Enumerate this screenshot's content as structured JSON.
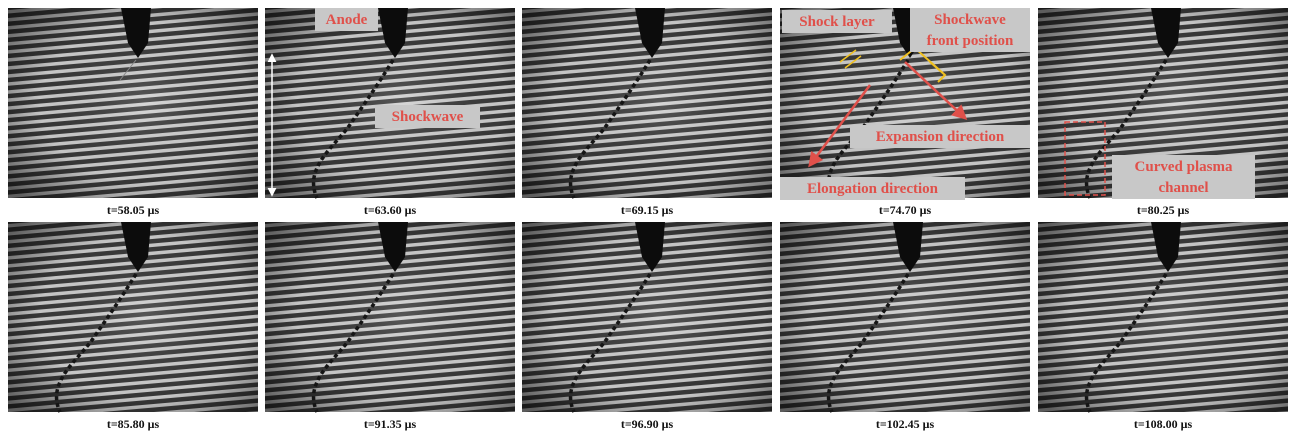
{
  "panels": [
    {
      "time": "t=58.05 μs"
    },
    {
      "time": "t=63.60 μs"
    },
    {
      "time": "t=69.15 μs"
    },
    {
      "time": "t=74.70 μs"
    },
    {
      "time": "t=80.25 μs"
    },
    {
      "time": "t=85.80 μs"
    },
    {
      "time": "t=91.35 μs"
    },
    {
      "time": "t=96.90 μs"
    },
    {
      "time": "t=102.45 μs"
    },
    {
      "time": "t=108.00 μs"
    }
  ],
  "annotations": [
    {
      "lines": [
        "Anode"
      ]
    },
    {
      "lines": [
        "Shockwave"
      ]
    },
    {
      "lines": [
        "Shock layer"
      ]
    },
    {
      "lines": [
        "Shockwave",
        "front position"
      ]
    },
    {
      "lines": [
        "Expansion direction"
      ]
    },
    {
      "lines": [
        "Elongation direction"
      ]
    },
    {
      "lines": [
        "Curved plasma",
        "channel"
      ]
    }
  ]
}
